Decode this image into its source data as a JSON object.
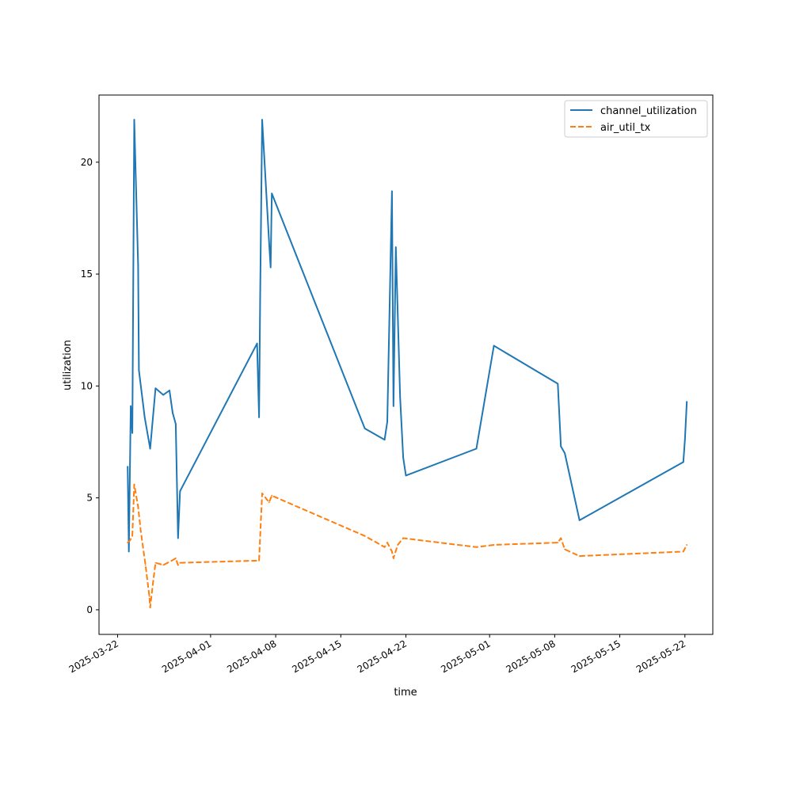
{
  "chart_data": {
    "type": "line",
    "title": "",
    "xlabel": "time",
    "ylabel": "utilization",
    "x_axis": {
      "type": "date",
      "range": [
        "2025-03-20",
        "2025-05-25"
      ],
      "ticks": [
        "2025-03-22",
        "2025-04-01",
        "2025-04-08",
        "2025-04-15",
        "2025-04-22",
        "2025-05-01",
        "2025-05-08",
        "2025-05-15",
        "2025-05-22"
      ]
    },
    "y_axis": {
      "range": [
        -1.1,
        23.0
      ],
      "ticks": [
        0,
        5,
        10,
        15,
        20
      ],
      "tick_labels": [
        "0",
        "5",
        "10",
        "15",
        "20"
      ]
    },
    "grid": false,
    "legend_position": "top-right",
    "colors": {
      "channel_utilization": "#1f77b4",
      "air_util_tx": "#ff7f0e"
    },
    "series": [
      {
        "name": "channel_utilization",
        "line_style": "solid",
        "points": [
          [
            "2025-03-23 02:00",
            6.4
          ],
          [
            "2025-03-23 05:00",
            2.6
          ],
          [
            "2025-03-23 10:00",
            9.1
          ],
          [
            "2025-03-23 14:00",
            7.9
          ],
          [
            "2025-03-23 19:00",
            21.9
          ],
          [
            "2025-03-24 05:00",
            15.4
          ],
          [
            "2025-03-24 07:00",
            10.7
          ],
          [
            "2025-03-24 22:00",
            8.6
          ],
          [
            "2025-03-25 12:00",
            7.2
          ],
          [
            "2025-03-26 02:00",
            9.9
          ],
          [
            "2025-03-26 22:00",
            9.6
          ],
          [
            "2025-03-27 14:00",
            9.8
          ],
          [
            "2025-03-27 22:00",
            8.8
          ],
          [
            "2025-03-28 06:00",
            8.3
          ],
          [
            "2025-03-28 12:00",
            3.2
          ],
          [
            "2025-03-28 17:00",
            5.3
          ],
          [
            "2025-04-06 00:00",
            11.9
          ],
          [
            "2025-04-06 05:00",
            8.6
          ],
          [
            "2025-04-06 08:00",
            14.0
          ],
          [
            "2025-04-06 13:00",
            21.9
          ],
          [
            "2025-04-07 07:00",
            16.4
          ],
          [
            "2025-04-07 11:00",
            15.3
          ],
          [
            "2025-04-07 14:00",
            18.6
          ],
          [
            "2025-04-17 14:00",
            8.1
          ],
          [
            "2025-04-19 17:00",
            7.6
          ],
          [
            "2025-04-20 00:00",
            8.4
          ],
          [
            "2025-04-20 12:00",
            18.7
          ],
          [
            "2025-04-20 16:00",
            9.1
          ],
          [
            "2025-04-20 22:00",
            16.2
          ],
          [
            "2025-04-21 09:00",
            9.5
          ],
          [
            "2025-04-21 17:00",
            6.8
          ],
          [
            "2025-04-22 00:00",
            6.0
          ],
          [
            "2025-04-29 14:00",
            7.2
          ],
          [
            "2025-05-01 11:00",
            11.8
          ],
          [
            "2025-05-08 08:00",
            10.1
          ],
          [
            "2025-05-08 16:00",
            7.3
          ],
          [
            "2025-05-09 02:00",
            7.0
          ],
          [
            "2025-05-10 16:00",
            4.0
          ],
          [
            "2025-05-21 20:00",
            6.6
          ],
          [
            "2025-05-22 00:00",
            7.6
          ],
          [
            "2025-05-22 05:00",
            9.3
          ]
        ]
      },
      {
        "name": "air_util_tx",
        "line_style": "dashed",
        "points": [
          [
            "2025-03-23 02:00",
            3.0
          ],
          [
            "2025-03-23 08:00",
            3.1
          ],
          [
            "2025-03-23 14:00",
            3.3
          ],
          [
            "2025-03-23 19:00",
            5.6
          ],
          [
            "2025-03-24 05:00",
            4.6
          ],
          [
            "2025-03-24 12:00",
            3.5
          ],
          [
            "2025-03-25 00:00",
            2.0
          ],
          [
            "2025-03-25 10:00",
            0.6
          ],
          [
            "2025-03-25 12:00",
            0.1
          ],
          [
            "2025-03-25 20:00",
            1.3
          ],
          [
            "2025-03-26 02:00",
            2.1
          ],
          [
            "2025-03-26 22:00",
            2.0
          ],
          [
            "2025-03-27 20:00",
            2.2
          ],
          [
            "2025-03-28 06:00",
            2.3
          ],
          [
            "2025-03-28 12:00",
            2.0
          ],
          [
            "2025-03-28 17:00",
            2.1
          ],
          [
            "2025-04-06 05:00",
            2.2
          ],
          [
            "2025-04-06 13:00",
            5.2
          ],
          [
            "2025-04-07 07:00",
            4.8
          ],
          [
            "2025-04-07 14:00",
            5.1
          ],
          [
            "2025-04-17 14:00",
            3.3
          ],
          [
            "2025-04-19 17:00",
            2.8
          ],
          [
            "2025-04-20 00:00",
            3.0
          ],
          [
            "2025-04-20 12:00",
            2.6
          ],
          [
            "2025-04-20 16:00",
            2.3
          ],
          [
            "2025-04-21 03:00",
            2.9
          ],
          [
            "2025-04-21 17:00",
            3.2
          ],
          [
            "2025-04-29 14:00",
            2.8
          ],
          [
            "2025-05-01 11:00",
            2.9
          ],
          [
            "2025-05-08 08:00",
            3.0
          ],
          [
            "2025-05-08 16:00",
            3.2
          ],
          [
            "2025-05-09 02:00",
            2.7
          ],
          [
            "2025-05-10 16:00",
            2.4
          ],
          [
            "2025-05-21 20:00",
            2.6
          ],
          [
            "2025-05-22 05:00",
            2.9
          ]
        ]
      }
    ]
  }
}
